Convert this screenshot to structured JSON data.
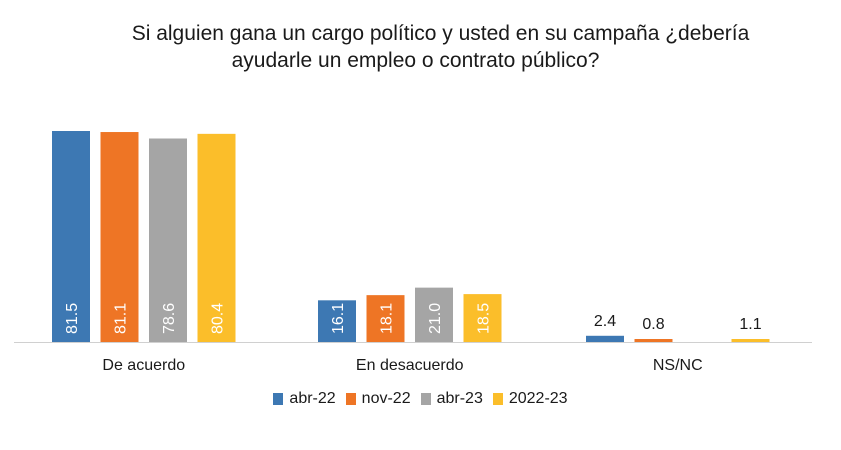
{
  "chart_data": {
    "type": "bar",
    "title": "Si alguien gana un cargo político y usted en su campaña ¿debería ayudarle un empleo o contrato público?",
    "title_lines": [
      "Si alguien gana un cargo político y usted en su campaña ¿debería",
      "ayudarle un empleo o contrato público?"
    ],
    "categories": [
      "De acuerdo",
      "En desacuerdo",
      "NS/NC"
    ],
    "series": [
      {
        "name": "abr-22",
        "color": "#3d78b3",
        "values": [
          81.5,
          16.1,
          2.4
        ],
        "labels": [
          "81.5",
          "16.1",
          "2.4"
        ]
      },
      {
        "name": "nov-22",
        "color": "#ee7525",
        "values": [
          81.1,
          18.1,
          0.8
        ],
        "labels": [
          "81.1",
          "18.1",
          "0.8"
        ]
      },
      {
        "name": "abr-23",
        "color": "#a5a5a5",
        "values": [
          78.6,
          21.0,
          null
        ],
        "labels": [
          "78.6",
          "21.0",
          ""
        ]
      },
      {
        "name": "2022-23",
        "color": "#fbbe2a",
        "values": [
          80.4,
          18.5,
          1.1
        ],
        "labels": [
          "80.4",
          "18.5",
          "1.1"
        ]
      }
    ],
    "xlabel": "",
    "ylabel": "",
    "ylim": [
      0,
      85
    ],
    "grid": false,
    "legend": "bottom"
  }
}
